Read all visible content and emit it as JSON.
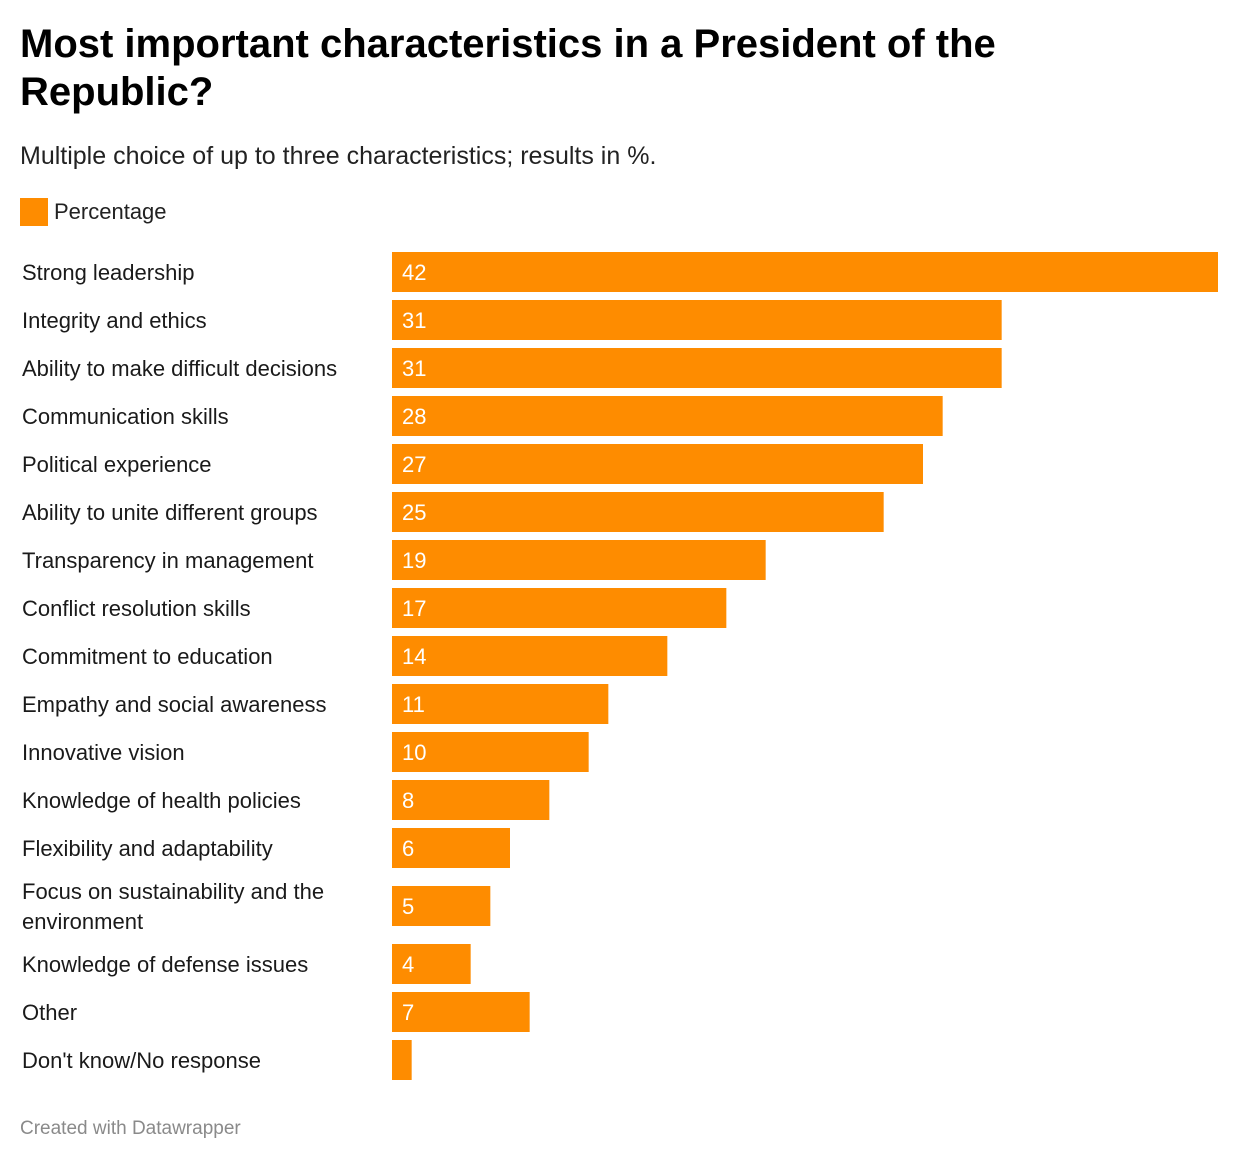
{
  "header": {
    "title": "Most important characteristics in a President of the Republic?",
    "subtitle": "Multiple choice of up to three characteristics; results in %."
  },
  "legend": {
    "label": "Percentage",
    "color": "#fe8c00"
  },
  "chart_data": {
    "type": "bar",
    "orientation": "horizontal",
    "categories": [
      "Strong leadership",
      "Integrity and ethics",
      "Ability to make difficult decisions",
      "Communication skills",
      "Political experience",
      "Ability to unite different groups",
      "Transparency in management",
      "Conflict resolution skills",
      "Commitment to education",
      "Empathy and social awareness",
      "Innovative vision",
      "Knowledge of health policies",
      "Flexibility and adaptability",
      "Focus on sustainability and the environment",
      "Knowledge of defense issues",
      "Other",
      "Don't know/No response"
    ],
    "series": [
      {
        "name": "Percentage",
        "color": "#fe8c00",
        "values": [
          42,
          31,
          31,
          28,
          27,
          25,
          19,
          17,
          14,
          11,
          10,
          8,
          6,
          5,
          4,
          7,
          1
        ],
        "labels": [
          "42",
          "31",
          "31",
          "28",
          "27",
          "25",
          "19",
          "17",
          "14",
          "11",
          "10",
          "8",
          "6",
          "5",
          "4",
          "7",
          ""
        ]
      }
    ],
    "xlim": [
      0,
      42
    ],
    "grid": false,
    "legend_position": "top-left"
  },
  "footer": {
    "credit": "Created with Datawrapper"
  }
}
